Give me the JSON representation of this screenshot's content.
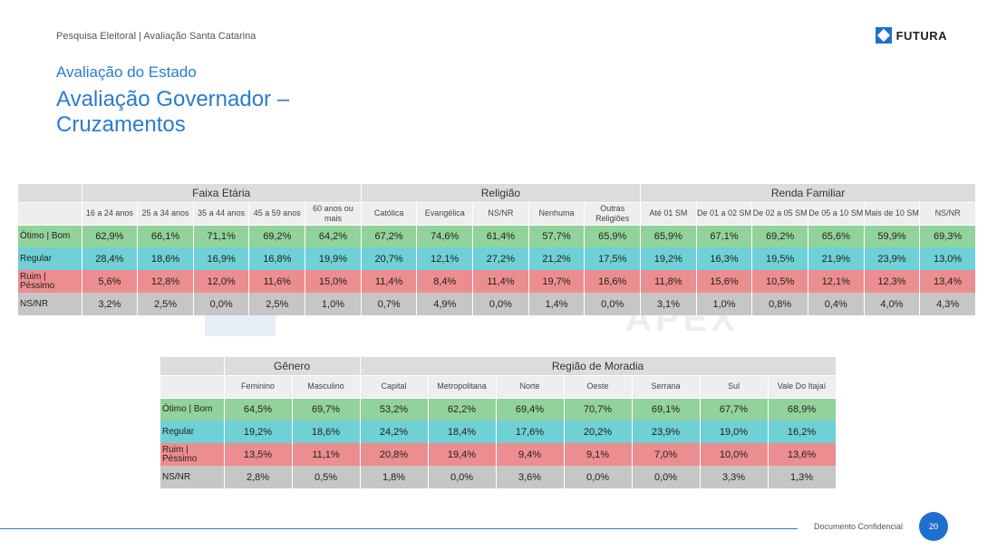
{
  "header": {
    "topline": "Pesquisa Eleitoral | Avaliação Santa Catarina",
    "logo_text": "FUTURA",
    "logo_icon": "diamond-square-icon",
    "section": "Avaliação do Estado",
    "title": "Avaliação Governador – Cruzamentos"
  },
  "watermark": "APEX",
  "row_labels": [
    "Ótimo | Bom",
    "Regular",
    "Ruim | Péssimo",
    "NS/NR"
  ],
  "table1": {
    "groups": [
      "Faixa Etária",
      "Religião",
      "Renda Familiar"
    ],
    "columns": [
      "16 a 24 anos",
      "25 a 34 anos",
      "35 a 44 anos",
      "45 a 59 anos",
      "60 anos ou mais",
      "Católica",
      "Evangélica",
      "NS/NR",
      "Nenhuma",
      "Outras Religiões",
      "Até 01 SM",
      "De 01 a 02 SM",
      "De 02 a 05 SM",
      "De 05 a 10 SM",
      "Mais de 10 SM",
      "NS/NR"
    ],
    "rows": [
      [
        "62,9%",
        "66,1%",
        "71,1%",
        "69,2%",
        "64,2%",
        "67,2%",
        "74,6%",
        "61,4%",
        "57,7%",
        "65,9%",
        "65,9%",
        "67,1%",
        "69,2%",
        "65,6%",
        "59,9%",
        "69,3%"
      ],
      [
        "28,4%",
        "18,6%",
        "16,9%",
        "16,8%",
        "19,9%",
        "20,7%",
        "12,1%",
        "27,2%",
        "21,2%",
        "17,5%",
        "19,2%",
        "16,3%",
        "19,5%",
        "21,9%",
        "23,9%",
        "13,0%"
      ],
      [
        "5,6%",
        "12,8%",
        "12,0%",
        "11,6%",
        "15,0%",
        "11,4%",
        "8,4%",
        "11,4%",
        "19,7%",
        "16,6%",
        "11,8%",
        "15,6%",
        "10,5%",
        "12,1%",
        "12,3%",
        "13,4%"
      ],
      [
        "3,2%",
        "2,5%",
        "0,0%",
        "2,5%",
        "1,0%",
        "0,7%",
        "4,9%",
        "0,0%",
        "1,4%",
        "0,0%",
        "3,1%",
        "1,0%",
        "0,8%",
        "0,4%",
        "4,0%",
        "4,3%"
      ]
    ]
  },
  "table2": {
    "groups": [
      "Gênero",
      "Região de Moradia"
    ],
    "columns": [
      "Feminino",
      "Masculino",
      "Capital",
      "Metropolitana",
      "Norte",
      "Oeste",
      "Serrana",
      "Sul",
      "Vale Do Itajaí"
    ],
    "rows": [
      [
        "64,5%",
        "69,7%",
        "53,2%",
        "62,2%",
        "69,4%",
        "70,7%",
        "69,1%",
        "67,7%",
        "68,9%"
      ],
      [
        "19,2%",
        "18,6%",
        "24,2%",
        "18,4%",
        "17,6%",
        "20,2%",
        "23,9%",
        "19,0%",
        "16,2%"
      ],
      [
        "13,5%",
        "11,1%",
        "20,8%",
        "19,4%",
        "9,4%",
        "9,1%",
        "7,0%",
        "10,0%",
        "13,6%"
      ],
      [
        "2,8%",
        "0,5%",
        "1,8%",
        "0,0%",
        "3,6%",
        "0,0%",
        "0,0%",
        "3,3%",
        "1,3%"
      ]
    ]
  },
  "footer": {
    "label": "Documento Confidencial",
    "page": "20"
  },
  "colors": {
    "accent": "#2a7bd1",
    "otimo_bom": "#92d39b",
    "regular": "#6fd0d6",
    "ruim_pessimo": "#ec8d90",
    "ns_nr": "#c6c6c6",
    "header_group": "#dcdcdc",
    "header_sub": "#eeeeee"
  }
}
